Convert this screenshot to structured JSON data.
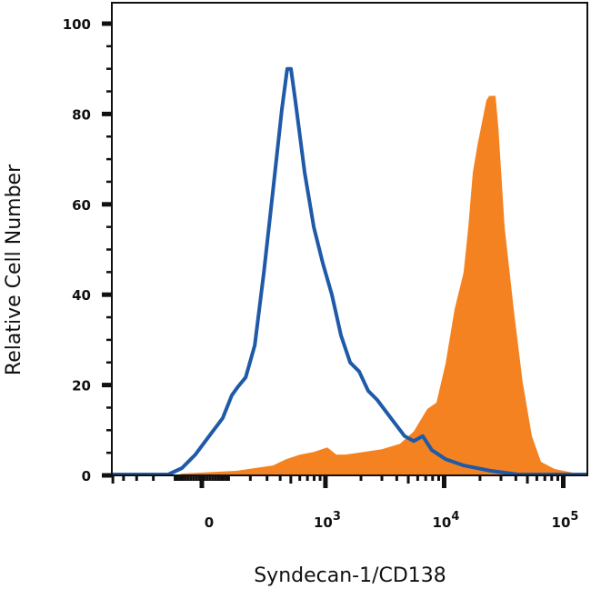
{
  "chart_data": {
    "type": "area",
    "title": "",
    "xlabel": "Syndecan-1/CD138",
    "ylabel": "Relative Cell Number",
    "xscale": "biexponential",
    "xlim": [
      -511,
      165000
    ],
    "ylim": [
      0,
      105
    ],
    "grid": false,
    "y_ticks": [
      0,
      20,
      40,
      60,
      80,
      100
    ],
    "x_ticks": [
      {
        "value": 0,
        "base": "0",
        "exp": ""
      },
      {
        "value": 1000,
        "base": "10",
        "exp": "3"
      },
      {
        "value": 10000,
        "base": "10",
        "exp": "4"
      },
      {
        "value": 100000,
        "base": "10",
        "exp": "5"
      }
    ],
    "series": [
      {
        "style": "filled",
        "color": "#f58220",
        "x": [
          -511,
          -91,
          -73,
          133,
          224,
          342,
          455,
          603,
          794,
          1038,
          1238,
          1480,
          2110,
          3000,
          4260,
          5550,
          7230,
          8620,
          10270,
          12250,
          14580,
          15950,
          17400,
          19000,
          20750,
          22600,
          23900,
          27000,
          28500,
          32200,
          38400,
          45600,
          54500,
          65000,
          84700,
          120000,
          165000
        ],
        "y": [
          0,
          0,
          0.4,
          1.0,
          1.6,
          2.2,
          3.6,
          4.6,
          5.2,
          6.2,
          4.6,
          4.6,
          5.2,
          5.8,
          7.0,
          9.7,
          14.7,
          16.1,
          24.7,
          36.8,
          44.9,
          54.9,
          67,
          73,
          78,
          83,
          84,
          84,
          77,
          55,
          36.8,
          20.7,
          8.7,
          3.0,
          1.4,
          0.6,
          0.2
        ]
      },
      {
        "style": "line",
        "color": "#1f5aa8",
        "x": [
          -511,
          -129,
          -73,
          -23,
          26,
          77,
          113,
          141,
          176,
          224,
          279,
          342,
          415,
          464,
          501,
          548,
          662,
          794,
          949,
          1134,
          1354,
          1619,
          1929,
          2303,
          2740,
          3570,
          4660,
          5550,
          6620,
          7880,
          10270,
          14580,
          24700,
          41800,
          165000
        ],
        "y": [
          0.2,
          0.2,
          1.6,
          4.6,
          8.7,
          12.7,
          17.7,
          19.7,
          21.7,
          28.8,
          44.9,
          63,
          81,
          90,
          90,
          83,
          67,
          55,
          47,
          40,
          31,
          25,
          23,
          18.7,
          16.7,
          12.7,
          8.7,
          7.6,
          8.7,
          5.6,
          3.6,
          2.2,
          1.0,
          0.2,
          0.2
        ]
      }
    ]
  }
}
